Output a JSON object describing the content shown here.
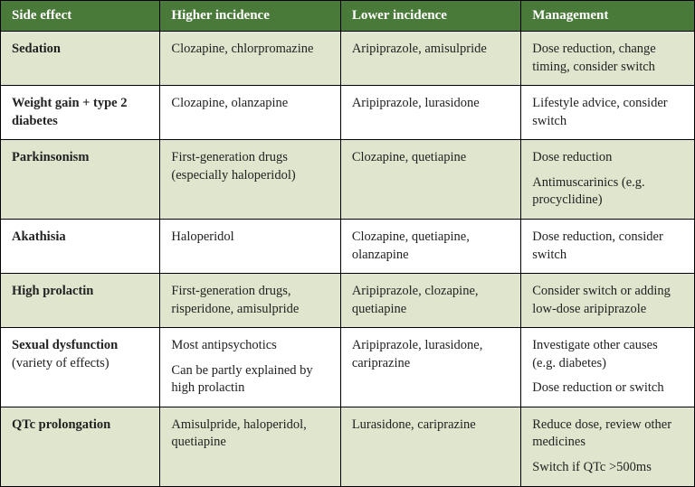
{
  "table": {
    "header_bg": "#4a7a3a",
    "header_fg": "#ffffff",
    "tint_bg": "#e0e6ce",
    "plain_bg": "#ffffff",
    "border_color": "#000000",
    "font_family": "Georgia, 'Times New Roman', serif",
    "header_font_size": 15,
    "cell_font_size": 14.5,
    "columns": [
      {
        "key": "side_effect",
        "label": "Side effect",
        "width_pct": 23
      },
      {
        "key": "higher",
        "label": "Higher incidence",
        "width_pct": 26
      },
      {
        "key": "lower",
        "label": "Lower incidence",
        "width_pct": 26
      },
      {
        "key": "mgmt",
        "label": "Management",
        "width_pct": 25
      }
    ],
    "rows": [
      {
        "tint": true,
        "side_effect": {
          "main": "Sedation",
          "sub": ""
        },
        "higher": [
          "Clozapine, chlorpromazine"
        ],
        "lower": [
          "Aripiprazole, amisulpride"
        ],
        "mgmt": [
          "Dose reduction, change timing, consider switch"
        ]
      },
      {
        "tint": false,
        "side_effect": {
          "main": "Weight gain + type 2 diabetes",
          "sub": ""
        },
        "higher": [
          "Clozapine, olanzapine"
        ],
        "lower": [
          "Aripiprazole, lurasidone"
        ],
        "mgmt": [
          "Lifestyle advice, consider switch"
        ]
      },
      {
        "tint": true,
        "side_effect": {
          "main": "Parkinsonism",
          "sub": ""
        },
        "higher": [
          "First-generation drugs (especially haloperidol)"
        ],
        "lower": [
          "Clozapine, quetiapine"
        ],
        "mgmt": [
          "Dose reduction",
          "Antimuscarinics (e.g. procyclidine)"
        ]
      },
      {
        "tint": false,
        "side_effect": {
          "main": "Akathisia",
          "sub": ""
        },
        "higher": [
          "Haloperidol"
        ],
        "lower": [
          "Clozapine, quetiapine, olanzapine"
        ],
        "mgmt": [
          "Dose reduction, consider switch"
        ]
      },
      {
        "tint": true,
        "side_effect": {
          "main": "High prolactin",
          "sub": ""
        },
        "higher": [
          "First-generation drugs, risperidone, amisulpride"
        ],
        "lower": [
          "Aripiprazole, clozapine, quetiapine"
        ],
        "mgmt": [
          "Consider switch or adding low-dose aripiprazole"
        ]
      },
      {
        "tint": false,
        "side_effect": {
          "main": "Sexual dysfunction",
          "sub": "(variety of effects)"
        },
        "higher": [
          "Most antipsychotics",
          "Can be partly explained by high prolactin"
        ],
        "lower": [
          "Aripiprazole, lurasidone, cariprazine"
        ],
        "mgmt": [
          "Investigate other causes (e.g. diabetes)",
          "Dose reduction or switch"
        ]
      },
      {
        "tint": true,
        "side_effect": {
          "main": "QTc prolongation",
          "sub": ""
        },
        "higher": [
          "Amisulpride, haloperidol, quetiapine"
        ],
        "lower": [
          "Lurasidone, cariprazine"
        ],
        "mgmt": [
          "Reduce dose, review other medicines",
          "Switch if QTc >500ms"
        ]
      }
    ]
  }
}
